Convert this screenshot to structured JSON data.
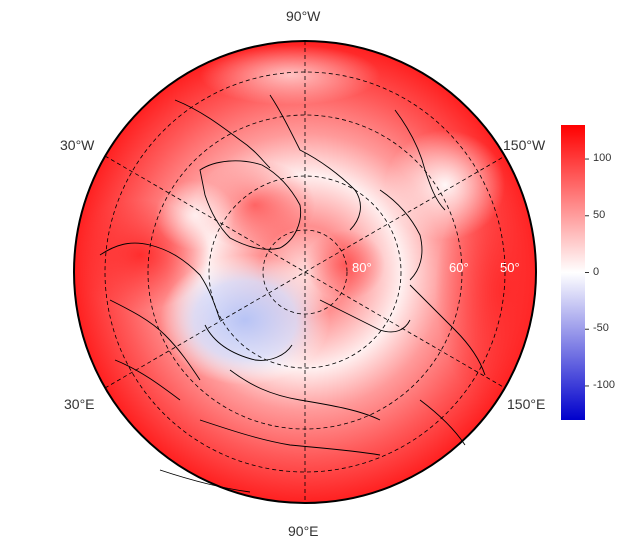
{
  "map": {
    "projection": "north-polar-stereographic",
    "lon_labels": [
      "90°W",
      "30°W",
      "150°W",
      "30°E",
      "150°E",
      "90°E"
    ],
    "lat_labels": [
      "80°",
      "60°",
      "50°"
    ],
    "graticule_style": "dashed",
    "colors": {
      "high": "#ff0000",
      "mid": "#ffffff",
      "low": "#0000cc",
      "coastline": "#000000"
    }
  },
  "colorbar": {
    "ticks": [
      "100",
      "50",
      "0",
      "-50",
      "-100"
    ],
    "tick_values": [
      100,
      50,
      0,
      -50,
      -100
    ],
    "range": [
      -130,
      130
    ]
  }
}
